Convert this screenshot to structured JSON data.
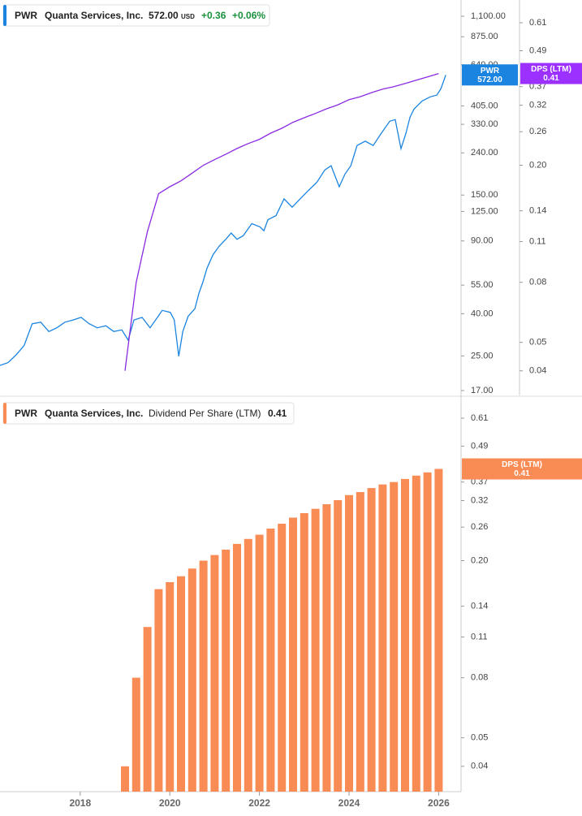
{
  "chart_data": [
    {
      "type": "line",
      "legend": {
        "ticker": "PWR",
        "company": "Quanta Services, Inc.",
        "price": "572.00",
        "currency": "USD",
        "change": "+0.36",
        "change_pct": "+0.06%"
      },
      "tags": [
        {
          "name": "PWR",
          "value": "572.00"
        },
        {
          "name": "DPS (LTM)",
          "value": "0.41"
        }
      ],
      "log_scale": true,
      "xlim": [
        2016.21,
        2026.5
      ],
      "ylim": [
        16.1,
        1318
      ],
      "yticks": [
        {
          "value": 1100,
          "label": "1,100.00"
        },
        {
          "value": 875,
          "label": "875.00"
        },
        {
          "value": 640,
          "label": "640.00"
        },
        {
          "value": 405,
          "label": "405.00"
        },
        {
          "value": 330,
          "label": "330.00"
        },
        {
          "value": 240,
          "label": "240.00"
        },
        {
          "value": 150,
          "label": "150.00"
        },
        {
          "value": 125,
          "label": "125.00"
        },
        {
          "value": 90,
          "label": "90.00"
        },
        {
          "value": 55,
          "label": "55.00"
        },
        {
          "value": 40,
          "label": "40.00"
        },
        {
          "value": 25,
          "label": "25.00"
        },
        {
          "value": 17,
          "label": "17.00"
        }
      ],
      "y2lim": [
        0.033,
        0.729
      ],
      "y2ticks": [
        0.61,
        0.49,
        0.37,
        0.32,
        0.26,
        {
          "value": 0.2,
          "label": "0.20"
        },
        0.14,
        0.11,
        0.08,
        0.05,
        0.04
      ],
      "series": [
        {
          "name": "PWR",
          "color": "#1a84e0",
          "x": [
            2016.21,
            2016.39,
            2016.57,
            2016.75,
            2016.93,
            2017.12,
            2017.3,
            2017.48,
            2017.66,
            2017.84,
            2018.02,
            2018.2,
            2018.38,
            2018.57,
            2018.75,
            2018.93,
            2019.07,
            2019.2,
            2019.38,
            2019.56,
            2019.74,
            2019.83,
            2020.01,
            2020.1,
            2020.2,
            2020.29,
            2020.41,
            2020.56,
            2020.65,
            2020.74,
            2020.83,
            2020.96,
            2021.1,
            2021.25,
            2021.37,
            2021.5,
            2021.64,
            2021.83,
            2022.01,
            2022.1,
            2022.19,
            2022.37,
            2022.55,
            2022.73,
            2022.91,
            2023.09,
            2023.28,
            2023.46,
            2023.6,
            2023.78,
            2023.91,
            2024.04,
            2024.18,
            2024.36,
            2024.54,
            2024.72,
            2024.91,
            2025.03,
            2025.16,
            2025.27,
            2025.36,
            2025.45,
            2025.63,
            2025.81,
            2025.96,
            2026.05,
            2026.16
          ],
          "values": [
            22.5,
            23.2,
            25.3,
            28.1,
            35.8,
            36.4,
            32.8,
            34.2,
            36.4,
            37.3,
            38.4,
            35.8,
            34.2,
            35.0,
            32.8,
            33.4,
            29.8,
            37.3,
            38.4,
            34.2,
            38.9,
            41.5,
            40.6,
            37.3,
            24.9,
            32.8,
            38.9,
            42.3,
            50.3,
            57.1,
            66.4,
            76.9,
            84.8,
            91.7,
            98.3,
            91.7,
            95.5,
            109.2,
            105.3,
            100.8,
            114.0,
            119.3,
            143.8,
            131.0,
            143.8,
            157.8,
            172.9,
            198.4,
            208,
            164.6,
            189.6,
            208,
            260.6,
            273.3,
            260.6,
            298.6,
            341.6,
            347.9,
            251.6,
            298.6,
            357.3,
            390.9,
            427.9,
            448.1,
            457.0,
            490.9,
            572
          ]
        },
        {
          "name": "DPS (LTM)",
          "color": "#8a2be2",
          "axis": "y2",
          "x": [
            2019,
            2019.25,
            2019.5,
            2019.75,
            2020,
            2020.25,
            2020.5,
            2020.75,
            2021,
            2021.25,
            2021.5,
            2021.75,
            2022,
            2022.25,
            2022.5,
            2022.75,
            2023,
            2023.25,
            2023.5,
            2023.75,
            2024,
            2024.25,
            2024.5,
            2024.75,
            2025,
            2025.25,
            2025.5,
            2025.75,
            2026
          ],
          "values": [
            0.04,
            0.08,
            0.119,
            0.16,
            0.169,
            0.177,
            0.188,
            0.2,
            0.209,
            0.218,
            0.228,
            0.237,
            0.245,
            0.257,
            0.267,
            0.28,
            0.29,
            0.3,
            0.311,
            0.321,
            0.334,
            0.342,
            0.353,
            0.363,
            0.37,
            0.379,
            0.389,
            0.399,
            0.41
          ]
        }
      ]
    },
    {
      "type": "bar",
      "legend": {
        "ticker": "PWR",
        "company": "Quanta Services, Inc.",
        "metric": "Dividend Per Share (LTM)",
        "value": "0.41"
      },
      "tags": [
        {
          "name": "DPS (LTM)",
          "value": "0.41"
        }
      ],
      "log_scale": true,
      "color": "#f98c55",
      "xlim": [
        2016.21,
        2026.5
      ],
      "xticks": [
        2018,
        2020,
        2022,
        2024,
        2026
      ],
      "ylim": [
        0.0328,
        0.715
      ],
      "yticks": [
        0.61,
        0.49,
        0.37,
        0.32,
        0.26,
        {
          "value": 0.2,
          "label": "0.20"
        },
        0.14,
        0.11,
        0.08,
        0.05,
        0.04
      ],
      "x": [
        2019,
        2019.25,
        2019.5,
        2019.75,
        2020,
        2020.25,
        2020.5,
        2020.75,
        2021,
        2021.25,
        2021.5,
        2021.75,
        2022,
        2022.25,
        2022.5,
        2022.75,
        2023,
        2023.25,
        2023.5,
        2023.75,
        2024,
        2024.25,
        2024.5,
        2024.75,
        2025,
        2025.25,
        2025.5,
        2025.75,
        2026
      ],
      "values": [
        0.04,
        0.08,
        0.119,
        0.16,
        0.169,
        0.177,
        0.188,
        0.2,
        0.209,
        0.218,
        0.228,
        0.237,
        0.245,
        0.257,
        0.267,
        0.28,
        0.29,
        0.3,
        0.311,
        0.321,
        0.334,
        0.342,
        0.353,
        0.363,
        0.37,
        0.379,
        0.389,
        0.399,
        0.41
      ]
    }
  ]
}
